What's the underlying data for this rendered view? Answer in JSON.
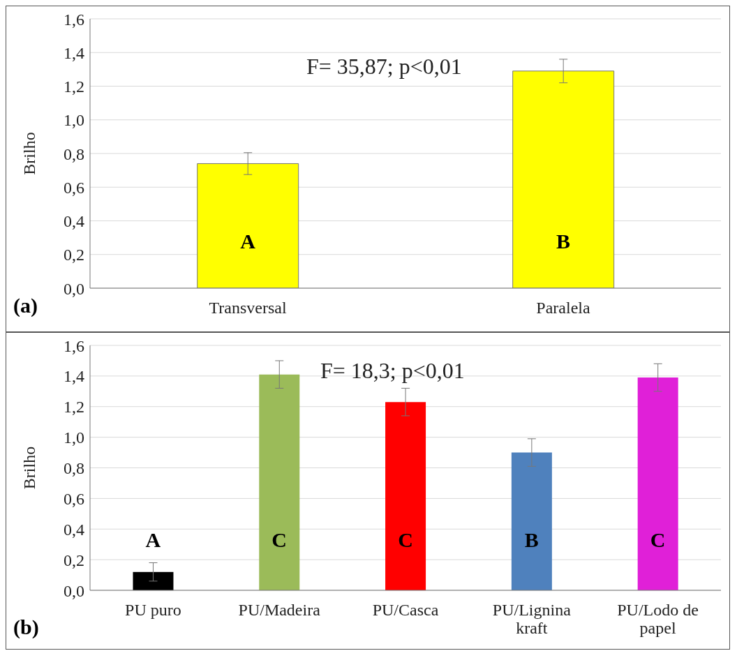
{
  "chart_data": [
    {
      "type": "bar",
      "ylabel": "Brilho",
      "categories": [
        "Transversal",
        "Paralela"
      ],
      "values": [
        0.74,
        1.29
      ],
      "errors": [
        0.065,
        0.07
      ],
      "colors": [
        "#ffff00",
        "#ffff00"
      ],
      "ylim": [
        0,
        1.6
      ],
      "yticks": [
        {
          "value": 0,
          "label": "0,0"
        },
        {
          "value": 0.2,
          "label": "0,2"
        },
        {
          "value": 0.4,
          "label": "0,4"
        },
        {
          "value": 0.6,
          "label": "0,6"
        },
        {
          "value": 0.8,
          "label": "0,8"
        },
        {
          "value": 1,
          "label": "1,0"
        },
        {
          "value": 1.2,
          "label": "1,2"
        },
        {
          "value": 1.4,
          "label": "1,4"
        },
        {
          "value": 1.6,
          "label": "1,6"
        }
      ],
      "grid": "y",
      "annotations": [
        "F= 35,87; p<0,01",
        "(a)",
        "A",
        "B"
      ]
    },
    {
      "type": "bar",
      "ylabel": "Brilho",
      "categories": [
        "PU puro",
        "PU/Madeira",
        "PU/Casca",
        "PU/Lignina kraft",
        "PU/Lodo de papel"
      ],
      "values": [
        0.12,
        1.41,
        1.23,
        0.9,
        1.39
      ],
      "errors": [
        0.06,
        0.09,
        0.09,
        0.09,
        0.09
      ],
      "colors": [
        "#000000",
        "#9bbb59",
        "#ff0000",
        "#4f81bd",
        "#e020d8"
      ],
      "ylim": [
        0,
        1.6
      ],
      "yticks": [
        {
          "value": 0,
          "label": "0,0"
        },
        {
          "value": 0.2,
          "label": "0,2"
        },
        {
          "value": 0.4,
          "label": "0,4"
        },
        {
          "value": 0.6,
          "label": "0,6"
        },
        {
          "value": 0.8,
          "label": "0,8"
        },
        {
          "value": 1,
          "label": "1,0"
        },
        {
          "value": 1.2,
          "label": "1,2"
        },
        {
          "value": 1.4,
          "label": "1,4"
        },
        {
          "value": 1.6,
          "label": "1,6"
        }
      ],
      "grid": "y",
      "annotations": [
        "F= 18,3; p<0,01",
        "(b)",
        "A",
        "C",
        "C",
        "B",
        "C"
      ]
    }
  ]
}
